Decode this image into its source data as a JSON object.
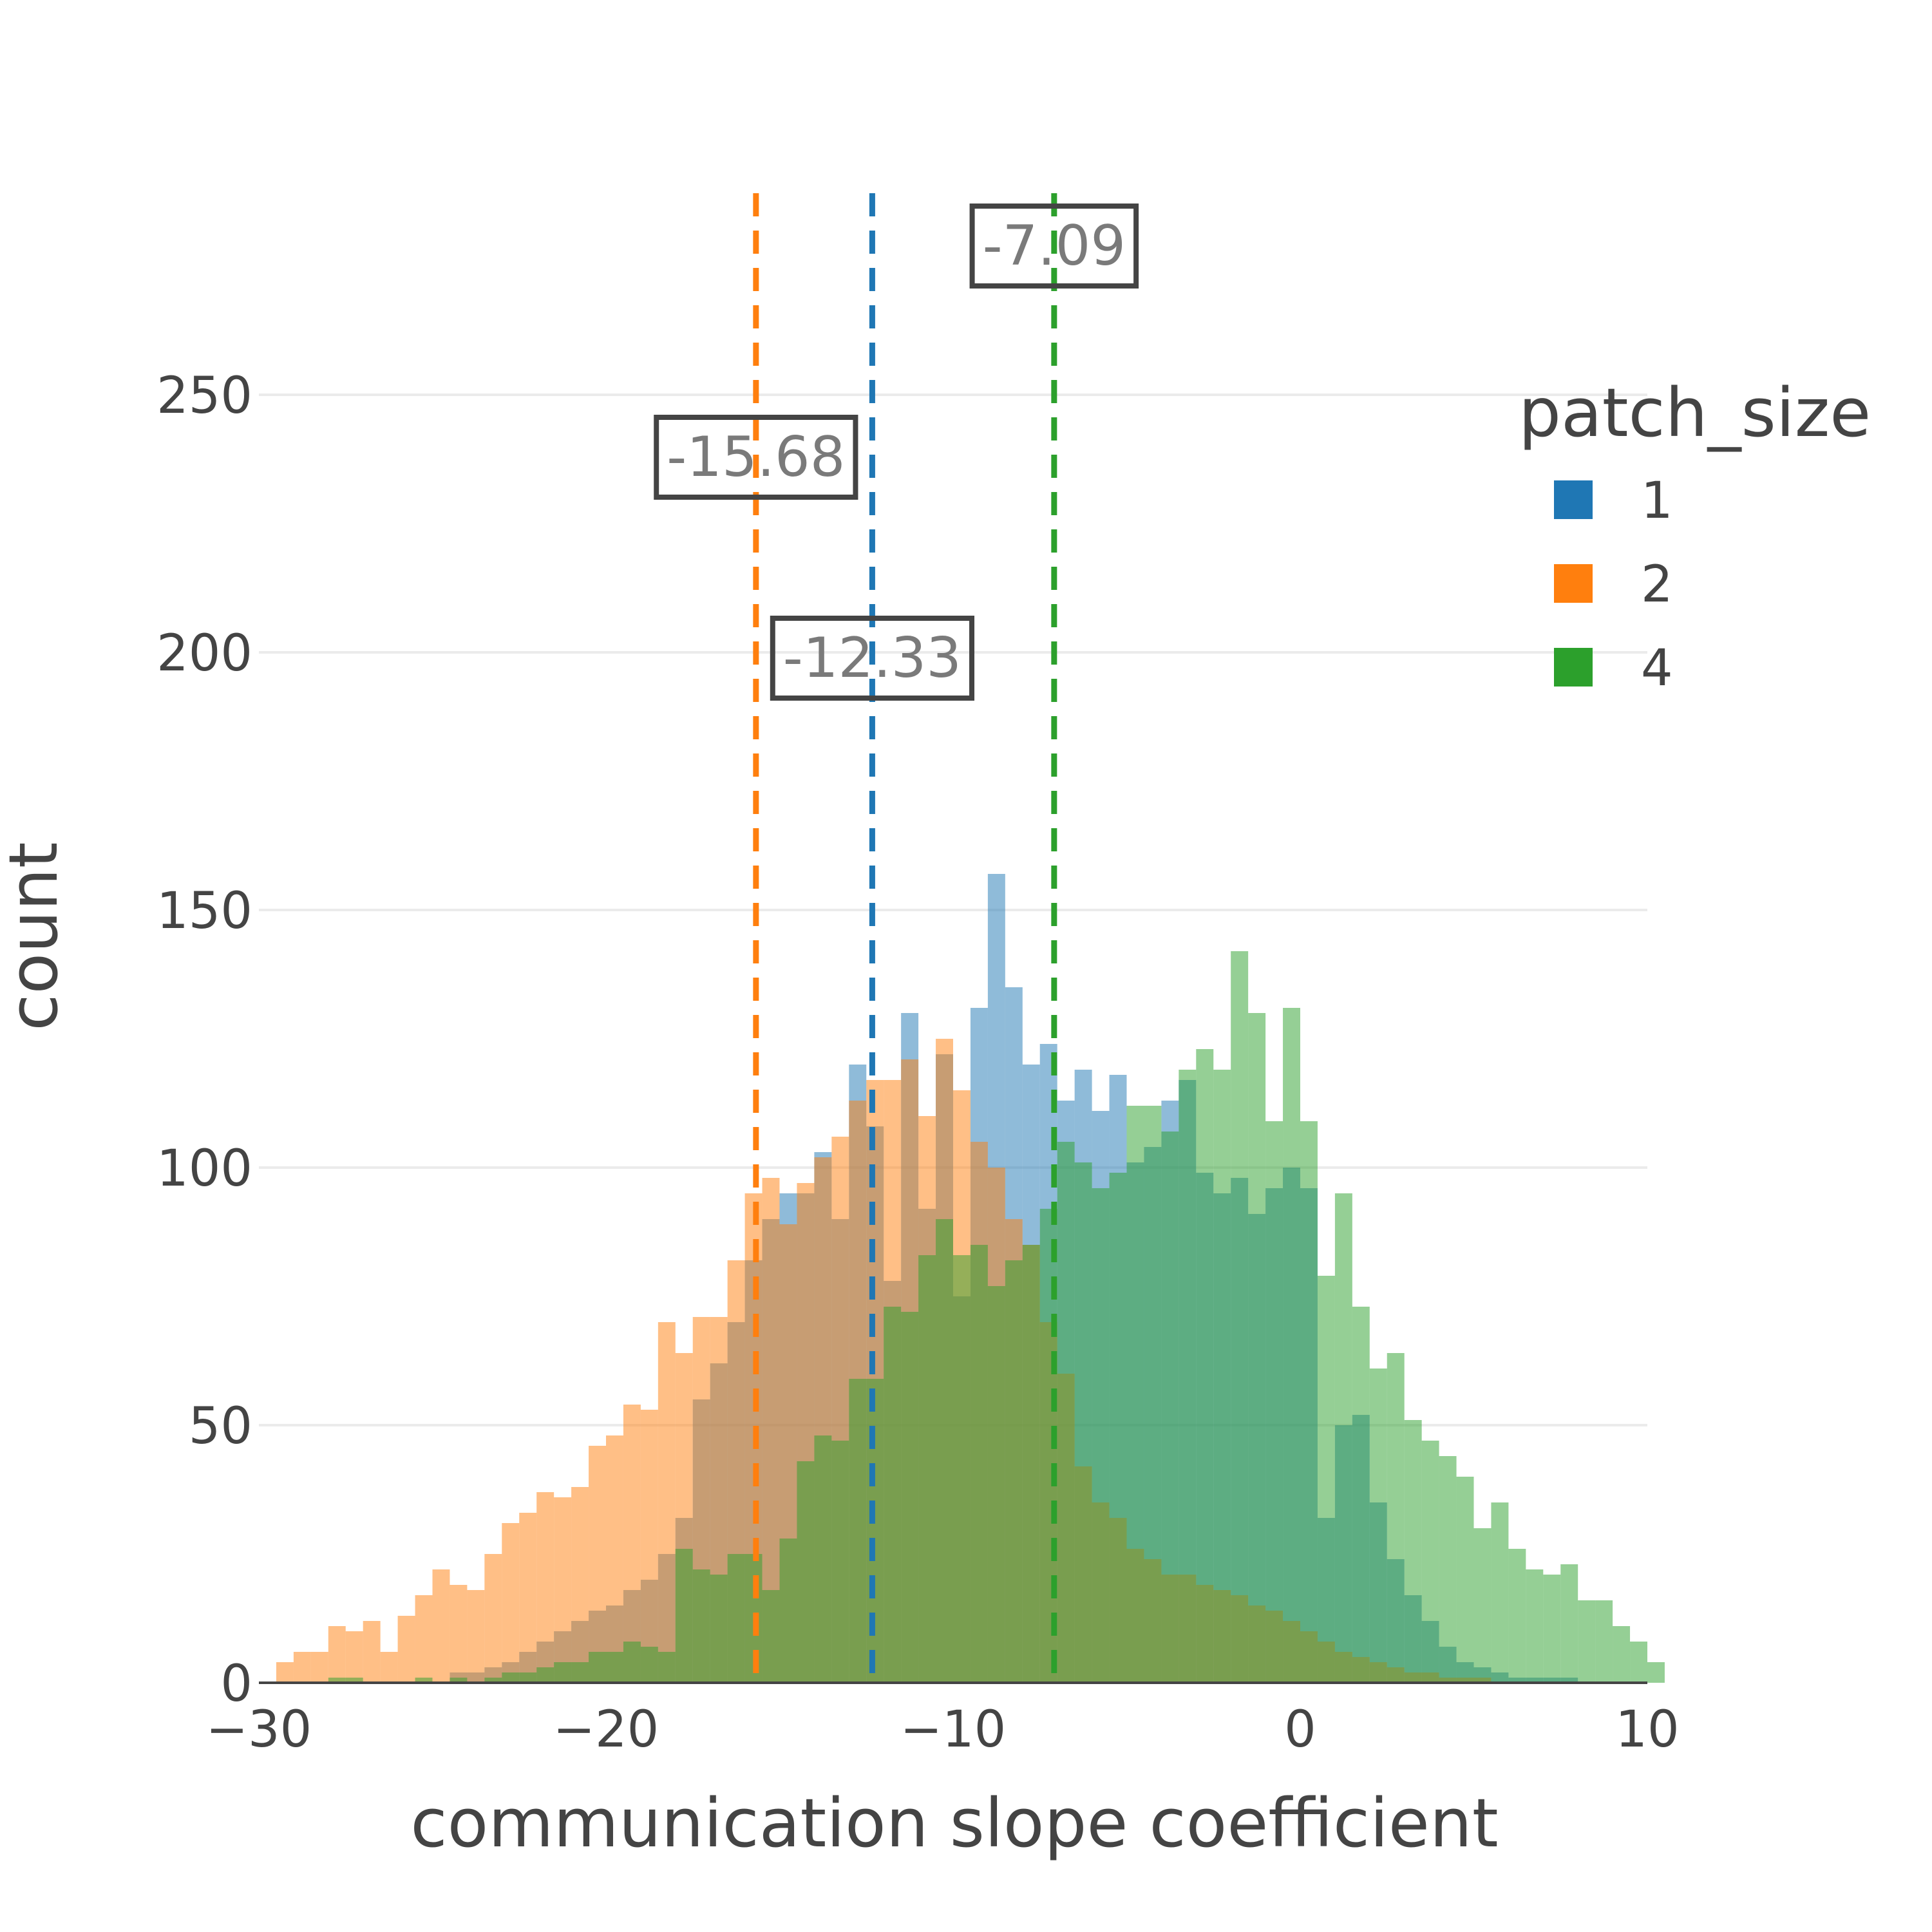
{
  "chart_data": {
    "type": "bar",
    "barmode": "overlay",
    "title": "",
    "xlabel": "communication slope coefficient",
    "ylabel": "count",
    "xlim": [
      -30,
      10
    ],
    "ylim": [
      0,
      280
    ],
    "grid": true,
    "x_ticks": [
      -30,
      -20,
      -10,
      0,
      10
    ],
    "x_tick_labels": [
      "−30",
      "−20",
      "−10",
      "0",
      "10"
    ],
    "y_ticks": [
      0,
      50,
      100,
      150,
      200,
      250
    ],
    "y_tick_labels": [
      "0",
      "50",
      "100",
      "150",
      "200",
      "250"
    ],
    "bin_width": 0.5,
    "legend": {
      "title": "patch_size",
      "placement": "right"
    },
    "series": [
      {
        "name": "1",
        "color": "#1f77b4",
        "bin_start": -29.5,
        "values": [
          0,
          0,
          0,
          0,
          0,
          0,
          0,
          0,
          0,
          0,
          2,
          2,
          3,
          4,
          6,
          8,
          10,
          12,
          14,
          15,
          18,
          20,
          25,
          32,
          55,
          62,
          70,
          82,
          90,
          95,
          95,
          103,
          90,
          120,
          108,
          78,
          130,
          92,
          122,
          75,
          131,
          157,
          135,
          120,
          124,
          113,
          119,
          111,
          118,
          101,
          104,
          113,
          117,
          99,
          95,
          98,
          91,
          96,
          100,
          96,
          32,
          50,
          52,
          35,
          24,
          17,
          12,
          7,
          4,
          3,
          2,
          1,
          1,
          1,
          1,
          0,
          0,
          0,
          0,
          0
        ]
      },
      {
        "name": "2",
        "color": "#ff7f0e",
        "bin_start": -29.5,
        "values": [
          4,
          6,
          6,
          11,
          10,
          12,
          6,
          13,
          17,
          22,
          19,
          18,
          25,
          31,
          33,
          37,
          36,
          38,
          46,
          48,
          54,
          53,
          70,
          64,
          71,
          71,
          82,
          95,
          98,
          89,
          97,
          102,
          106,
          113,
          117,
          117,
          121,
          110,
          125,
          115,
          105,
          100,
          90,
          85,
          70,
          60,
          42,
          35,
          32,
          26,
          24,
          21,
          21,
          19,
          18,
          17,
          15,
          14,
          12,
          10,
          8,
          6,
          5,
          4,
          3,
          2,
          2,
          1,
          1,
          1,
          0,
          0,
          0,
          0,
          0,
          0,
          0,
          0,
          0,
          0
        ]
      },
      {
        "name": "4",
        "color": "#2ca02c",
        "bin_start": -29.5,
        "values": [
          0,
          0,
          0,
          1,
          1,
          0,
          0,
          0,
          1,
          0,
          1,
          0,
          1,
          2,
          2,
          3,
          4,
          4,
          6,
          6,
          8,
          7,
          6,
          26,
          22,
          21,
          25,
          25,
          18,
          28,
          43,
          48,
          47,
          59,
          59,
          73,
          72,
          83,
          90,
          83,
          85,
          77,
          82,
          85,
          92,
          105,
          101,
          96,
          99,
          112,
          112,
          107,
          119,
          123,
          119,
          142,
          130,
          109,
          131,
          109,
          79,
          95,
          73,
          61,
          64,
          51,
          47,
          44,
          40,
          30,
          35,
          26,
          22,
          21,
          23,
          16,
          16,
          11,
          8,
          4
        ]
      }
    ],
    "annotations": [
      {
        "series": "2",
        "x": -15.68,
        "text": "-15.68",
        "label_y": 238
      },
      {
        "series": "1",
        "x": -12.33,
        "text": "-12.33",
        "label_y": 199
      },
      {
        "series": "4",
        "x": -7.09,
        "text": "-7.09",
        "label_y": 279
      }
    ]
  }
}
